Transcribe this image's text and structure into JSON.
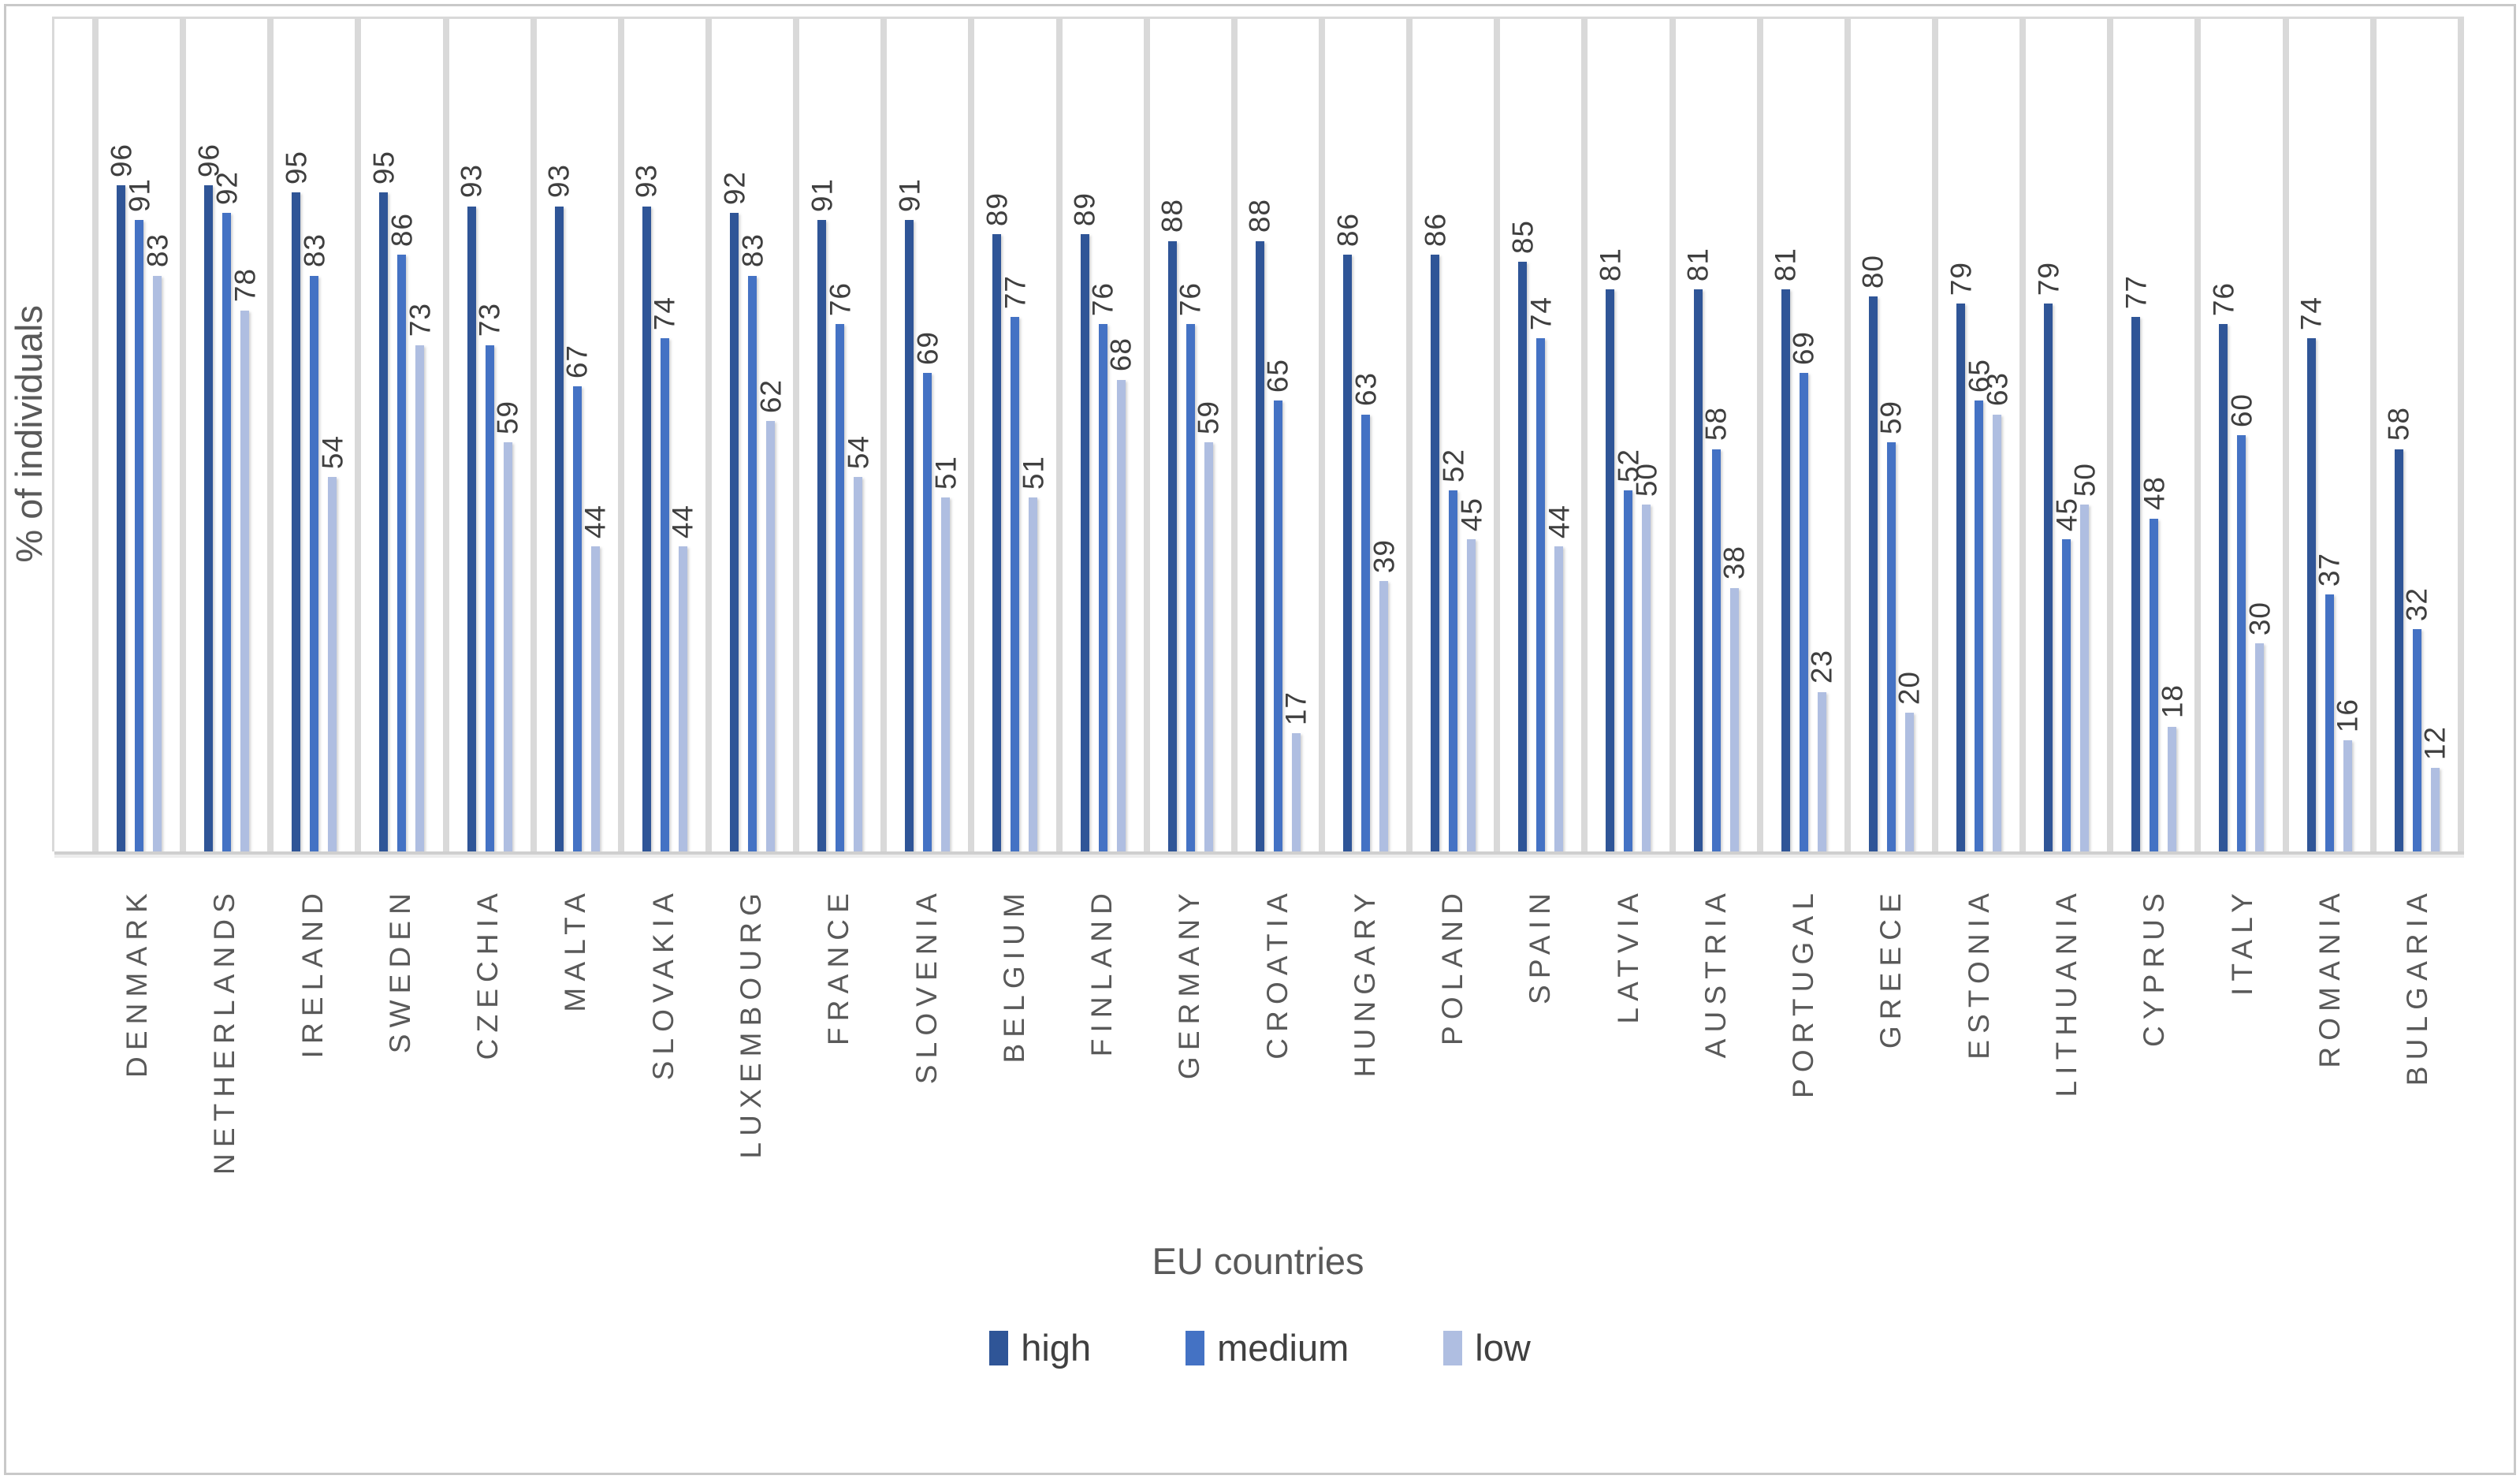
{
  "chart_data": {
    "type": "bar",
    "title": "",
    "xlabel": "EU countries",
    "ylabel": "% of individuals",
    "categories": [
      "DENMARK",
      "NETHERLANDS",
      "IRELAND",
      "SWEDEN",
      "CZECHIA",
      "MALTA",
      "SLOVAKIA",
      "LUXEMBOURG",
      "FRANCE",
      "SLOVENIA",
      "BELGIUM",
      "FINLAND",
      "GERMANY",
      "CROATIA",
      "HUNGARY",
      "POLAND",
      "SPAIN",
      "LATVIA",
      "AUSTRIA",
      "PORTUGAL",
      "GREECE",
      "ESTONIA",
      "LITHUANIA",
      "CYPRUS",
      "ITALY",
      "ROMANIA",
      "BULGARIA"
    ],
    "series": [
      {
        "name": "high",
        "color": "#2F5597",
        "values": [
          96,
          96,
          95,
          95,
          93,
          93,
          93,
          92,
          91,
          91,
          89,
          89,
          88,
          88,
          86,
          86,
          85,
          81,
          81,
          81,
          80,
          79,
          79,
          77,
          76,
          74,
          58
        ]
      },
      {
        "name": "medium",
        "color": "#4472C4",
        "values": [
          91,
          92,
          83,
          86,
          73,
          67,
          74,
          83,
          76,
          69,
          77,
          76,
          76,
          65,
          63,
          52,
          74,
          52,
          58,
          69,
          59,
          65,
          45,
          48,
          60,
          37,
          32
        ]
      },
      {
        "name": "low",
        "color": "#AFBEE1",
        "values": [
          83,
          78,
          54,
          73,
          59,
          44,
          44,
          62,
          54,
          51,
          51,
          68,
          59,
          17,
          39,
          45,
          44,
          50,
          38,
          23,
          20,
          63,
          50,
          18,
          30,
          16,
          12
        ]
      }
    ],
    "ylim": [
      0,
      120
    ],
    "y_axis_ticks_visible": false,
    "value_labels": "rotated-vertical-above-bars",
    "gridlines": "vertical-category-separators",
    "legend_position": "bottom"
  },
  "styles": {
    "separator_color": "#D9D9D9",
    "axis_line_color": "#CFCFCF",
    "value_label_color": "#3F3F3F",
    "category_label_color": "#595959",
    "axis_title_color": "#595959",
    "frame_color": "#C9C9C9"
  }
}
